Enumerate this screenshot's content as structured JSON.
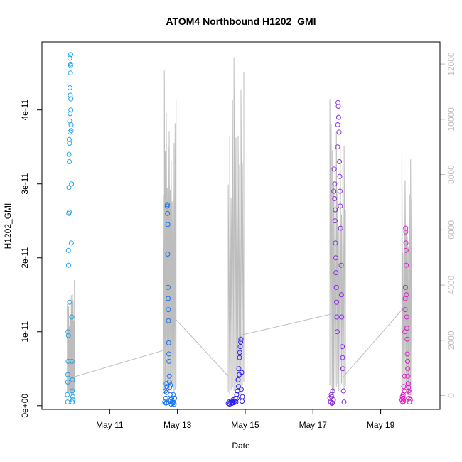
{
  "chart_data": {
    "type": "scatter",
    "title": "ATOM4 Northbound H1202_GMI",
    "xlabel": "Date",
    "ylabel": "H1202_GMI",
    "x_unit": "date",
    "x_range": [
      "2016-05-09T00:00",
      "2016-05-20T18:00"
    ],
    "x_ticks": [
      {
        "date": "2016-05-11",
        "label": "May 11"
      },
      {
        "date": "2016-05-13",
        "label": "May 13"
      },
      {
        "date": "2016-05-15",
        "label": "May 15"
      },
      {
        "date": "2016-05-17",
        "label": "May 17"
      },
      {
        "date": "2016-05-19",
        "label": "May 19"
      }
    ],
    "y_left": {
      "range": [
        -5e-13,
        4.92e-11
      ],
      "ticks": [
        {
          "value": 0,
          "label": "0e+00"
        },
        {
          "value": 1e-11,
          "label": "1e-11"
        },
        {
          "value": 2e-11,
          "label": "2e-11"
        },
        {
          "value": 3e-11,
          "label": "3e-11"
        },
        {
          "value": 4e-11,
          "label": "4e-11"
        }
      ]
    },
    "y_right": {
      "range": [
        -500,
        12800
      ],
      "color": "#bdbdbd",
      "ticks": [
        {
          "value": 0,
          "label": "0"
        },
        {
          "value": 2000,
          "label": "2000"
        },
        {
          "value": 4000,
          "label": "4000"
        },
        {
          "value": 6000,
          "label": "6000"
        },
        {
          "value": 8000,
          "label": "8000"
        },
        {
          "value": 10000,
          "label": "10000"
        },
        {
          "value": 12000,
          "label": "12000"
        }
      ]
    },
    "grid": false,
    "legend": "none",
    "series": [
      {
        "type": "points",
        "y_axis": "left",
        "marker": "open-circle",
        "color_scale": [
          "#00aaff",
          "#0055ff",
          "#2200ff",
          "#7f00ff",
          "#ff00cc"
        ],
        "clusters": [
          {
            "color": "#1ca4f2",
            "x_range": [
              "2016-05-09T18:00",
              "2016-05-09T22:00"
            ],
            "points": [
              [
                0.0,
                1.5e-12
              ],
              [
                0.08,
                3.2e-12
              ],
              [
                0.15,
                6e-12
              ],
              [
                0.2,
                9.5e-12
              ],
              [
                0.25,
                2.6e-11
              ],
              [
                0.3,
                3.4e-11
              ],
              [
                0.33,
                3.6e-11
              ],
              [
                0.36,
                3.3e-11
              ],
              [
                0.4,
                1.4e-11
              ],
              [
                0.44,
                4.7e-11
              ],
              [
                0.48,
                3.7e-11
              ],
              [
                0.52,
                4.2e-11
              ],
              [
                0.55,
                4.5e-11
              ],
              [
                0.58,
                4.6e-11
              ],
              [
                0.62,
                4e-11
              ],
              [
                0.66,
                3.8e-11
              ],
              [
                0.7,
                2.2e-11
              ],
              [
                0.74,
                3e-11
              ],
              [
                0.78,
                1.2e-11
              ],
              [
                0.82,
                6e-12
              ],
              [
                0.86,
                2e-12
              ],
              [
                0.9,
                3.5e-12
              ],
              [
                0.94,
                8e-13
              ],
              [
                0.98,
                1.2e-12
              ],
              [
                0.5,
                3.95e-11
              ],
              [
                0.46,
                4.3e-11
              ],
              [
                0.28,
                2.95e-11
              ],
              [
                0.22,
                1.9e-11
              ],
              [
                0.12,
                1e-11
              ],
              [
                0.18,
                2.1e-11
              ],
              [
                0.38,
                3.55e-11
              ],
              [
                0.6,
                4.75e-11
              ],
              [
                0.64,
                4.15e-11
              ],
              [
                0.68,
                3.72e-11
              ],
              [
                0.88,
                5e-13
              ],
              [
                0.05,
                5e-13
              ],
              [
                0.1,
                4.2e-12
              ],
              [
                0.35,
                2.62e-11
              ],
              [
                0.42,
                3.85e-11
              ],
              [
                0.56,
                4.62e-11
              ]
            ]
          },
          {
            "color": "#1473f2",
            "x_range": [
              "2016-05-12T15:00",
              "2016-05-12T22:00"
            ],
            "points": [
              [
                0.0,
                5e-13
              ],
              [
                0.05,
                2e-12
              ],
              [
                0.1,
                1e-12
              ],
              [
                0.15,
                3e-12
              ],
              [
                0.2,
                4e-13
              ],
              [
                0.25,
                2.7e-11
              ],
              [
                0.28,
                2.6e-11
              ],
              [
                0.3,
                2.05e-11
              ],
              [
                0.33,
                1.6e-11
              ],
              [
                0.36,
                1.3e-11
              ],
              [
                0.4,
                8.5e-12
              ],
              [
                0.43,
                6e-12
              ],
              [
                0.46,
                4e-12
              ],
              [
                0.5,
                2.5e-12
              ],
              [
                0.55,
                1.5e-12
              ],
              [
                0.6,
                8e-13
              ],
              [
                0.65,
                2e-13
              ],
              [
                0.7,
                1e-12
              ],
              [
                0.75,
                5e-13
              ],
              [
                0.8,
                3e-13
              ],
              [
                0.85,
                1.5e-12
              ],
              [
                0.9,
                4e-13
              ],
              [
                0.95,
                2e-13
              ],
              [
                1.0,
                1e-12
              ],
              [
                0.27,
                2.72e-11
              ],
              [
                0.31,
                2.45e-11
              ],
              [
                0.34,
                1.45e-11
              ],
              [
                0.38,
                1.15e-11
              ],
              [
                0.42,
                7e-12
              ],
              [
                0.48,
                3.2e-12
              ],
              [
                0.22,
                2.6e-12
              ],
              [
                0.12,
                3.5e-13
              ],
              [
                0.18,
                1.8e-12
              ],
              [
                0.52,
                6e-13
              ],
              [
                0.58,
                2.8e-12
              ]
            ]
          },
          {
            "color": "#2a1ef0",
            "x_range": [
              "2016-05-14T12:00",
              "2016-05-14T22:00"
            ],
            "points": [
              [
                0.0,
                3e-13
              ],
              [
                0.05,
                5e-13
              ],
              [
                0.1,
                2e-13
              ],
              [
                0.15,
                4e-13
              ],
              [
                0.2,
                6e-13
              ],
              [
                0.25,
                3e-13
              ],
              [
                0.3,
                5e-13
              ],
              [
                0.35,
                8e-13
              ],
              [
                0.4,
                4e-13
              ],
              [
                0.45,
                6e-13
              ],
              [
                0.5,
                1e-12
              ],
              [
                0.55,
                5e-13
              ],
              [
                0.6,
                1.5e-12
              ],
              [
                0.65,
                2e-12
              ],
              [
                0.7,
                3.5e-12
              ],
              [
                0.75,
                5e-12
              ],
              [
                0.8,
                6.5e-12
              ],
              [
                0.85,
                8e-12
              ],
              [
                0.9,
                9e-12
              ],
              [
                0.95,
                4.5e-12
              ],
              [
                1.0,
                1.2e-12
              ],
              [
                0.82,
                7.2e-12
              ],
              [
                0.88,
                8.6e-12
              ],
              [
                0.78,
                4.2e-12
              ],
              [
                0.72,
                2.6e-12
              ],
              [
                0.92,
                2.2e-12
              ],
              [
                0.98,
                6e-13
              ],
              [
                0.62,
                1e-12
              ]
            ]
          },
          {
            "color": "#8a2be2",
            "x_range": [
              "2016-05-17T12:00",
              "2016-05-17T22:00"
            ],
            "points": [
              [
                0.0,
                1e-12
              ],
              [
                0.05,
                5e-13
              ],
              [
                0.1,
                1.5e-12
              ],
              [
                0.15,
                3e-13
              ],
              [
                0.2,
                2e-12
              ],
              [
                0.25,
                8e-13
              ],
              [
                0.3,
                3.2e-11
              ],
              [
                0.33,
                2.8e-11
              ],
              [
                0.36,
                2.5e-11
              ],
              [
                0.4,
                2.2e-11
              ],
              [
                0.44,
                1.8e-11
              ],
              [
                0.48,
                1.4e-11
              ],
              [
                0.52,
                1e-11
              ],
              [
                0.55,
                3.5e-11
              ],
              [
                0.58,
                4.1e-11
              ],
              [
                0.62,
                3.9e-11
              ],
              [
                0.65,
                3.7e-11
              ],
              [
                0.68,
                3.3e-11
              ],
              [
                0.72,
                2.9e-11
              ],
              [
                0.76,
                2.4e-11
              ],
              [
                0.8,
                1.9e-11
              ],
              [
                0.84,
                1.2e-11
              ],
              [
                0.88,
                8e-12
              ],
              [
                0.92,
                5e-12
              ],
              [
                0.96,
                2e-12
              ],
              [
                1.0,
                5e-13
              ],
              [
                0.6,
                4.05e-11
              ],
              [
                0.56,
                3.8e-11
              ],
              [
                0.46,
                1.6e-11
              ],
              [
                0.38,
                2.65e-11
              ],
              [
                0.34,
                3e-11
              ],
              [
                0.7,
                3.1e-11
              ],
              [
                0.74,
                2.7e-11
              ],
              [
                0.82,
                1.5e-11
              ],
              [
                0.9,
                6.5e-12
              ],
              [
                0.12,
                1.2e-12
              ],
              [
                0.18,
                4e-13
              ],
              [
                0.28,
                2.9e-11
              ],
              [
                0.42,
                2e-11
              ],
              [
                0.5,
                1.2e-11
              ]
            ]
          },
          {
            "color": "#e21bc9",
            "x_range": [
              "2016-05-19T15:00",
              "2016-05-19T21:00"
            ],
            "points": [
              [
                0.0,
                8e-13
              ],
              [
                0.05,
                1.2e-12
              ],
              [
                0.1,
                5e-13
              ],
              [
                0.15,
                1.5e-12
              ],
              [
                0.2,
                6e-13
              ],
              [
                0.25,
                1e-12
              ],
              [
                0.3,
                2e-12
              ],
              [
                0.35,
                1e-11
              ],
              [
                0.38,
                1.3e-11
              ],
              [
                0.42,
                1.6e-11
              ],
              [
                0.45,
                2.4e-11
              ],
              [
                0.48,
                2.2e-11
              ],
              [
                0.52,
                1.9e-11
              ],
              [
                0.55,
                1.5e-11
              ],
              [
                0.58,
                1.2e-11
              ],
              [
                0.62,
                9e-12
              ],
              [
                0.65,
                7e-12
              ],
              [
                0.7,
                5e-12
              ],
              [
                0.75,
                3e-12
              ],
              [
                0.8,
                2e-12
              ],
              [
                0.85,
                1e-12
              ],
              [
                0.9,
                5e-13
              ],
              [
                0.95,
                1.8e-12
              ],
              [
                1.0,
                8e-13
              ],
              [
                0.46,
                2.35e-11
              ],
              [
                0.5,
                2.1e-11
              ],
              [
                0.4,
                1.45e-11
              ],
              [
                0.6,
                1.05e-11
              ],
              [
                0.68,
                6e-12
              ],
              [
                0.72,
                4e-12
              ],
              [
                0.78,
                2.5e-12
              ],
              [
                0.32,
                4e-12
              ],
              [
                0.12,
                1e-12
              ],
              [
                0.22,
                2.6e-12
              ]
            ]
          }
        ]
      },
      {
        "type": "spikes",
        "y_axis": "right",
        "color": "#bdbdbd",
        "segments": [
          {
            "x_range": [
              "2016-05-09T18:00",
              "2016-05-09T23:00"
            ],
            "max": 4300,
            "count": 12
          },
          {
            "x_range": [
              "2016-05-12T14:00",
              "2016-05-12T23:00"
            ],
            "max": 12000,
            "count": 14
          },
          {
            "x_range": [
              "2016-05-14T12:00",
              "2016-05-14T23:00"
            ],
            "max": 12500,
            "count": 12
          },
          {
            "x_range": [
              "2016-05-17T12:00",
              "2016-05-17T23:00"
            ],
            "max": 11100,
            "count": 13
          },
          {
            "x_range": [
              "2016-05-19T15:00",
              "2016-05-19T22:00"
            ],
            "max": 9200,
            "count": 10
          }
        ],
        "connectors": [
          {
            "from": [
              "2016-05-09T21:00",
              650
            ],
            "to": [
              "2016-05-12T15:00",
              1650
            ]
          },
          {
            "from": [
              "2016-05-12T23:00",
              2750
            ],
            "to": [
              "2016-05-14T12:00",
              700
            ]
          },
          {
            "from": [
              "2016-05-14T22:00",
              2200
            ],
            "to": [
              "2016-05-17T13:00",
              2950
            ]
          },
          {
            "from": [
              "2016-05-17T21:00",
              650
            ],
            "to": [
              "2016-05-19T15:00",
              3100
            ]
          }
        ]
      }
    ]
  }
}
